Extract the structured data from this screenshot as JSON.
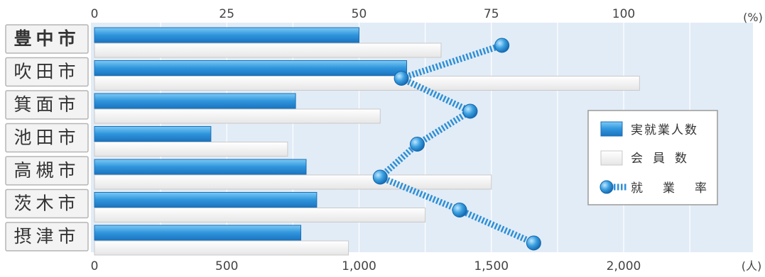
{
  "chart_data": {
    "type": "bar",
    "categories": [
      "豊中市",
      "吹田市",
      "箕面市",
      "池田市",
      "高槻市",
      "茨木市",
      "摂津市"
    ],
    "series": [
      {
        "name": "実就業人数",
        "values": [
          1000,
          1180,
          760,
          440,
          800,
          840,
          780
        ],
        "axis": "bottom"
      },
      {
        "name": "会員数",
        "values": [
          1310,
          2060,
          1080,
          730,
          1500,
          1250,
          960
        ],
        "axis": "bottom"
      },
      {
        "name": "就業率",
        "values": [
          77,
          58,
          71,
          61,
          54,
          69,
          83
        ],
        "axis": "top",
        "style": "line"
      }
    ],
    "top_axis": {
      "unit": "(%)",
      "ticks": [
        0,
        25,
        50,
        75,
        100
      ],
      "range": [
        0,
        100
      ]
    },
    "bottom_axis": {
      "unit": "(人)",
      "ticks": [
        "0",
        "500",
        "1,000",
        "1,500",
        "2,000"
      ],
      "tick_values": [
        0,
        500,
        1000,
        1500,
        2000
      ],
      "range": [
        0,
        2000
      ]
    },
    "grid": true,
    "legend_position": "right",
    "colors": {
      "employed": "#3aa0e0",
      "members": "#f7f7f7",
      "rate": "#3b9fe0",
      "plot_bg": "#e2ecf6",
      "label_box": "#f4f4f4"
    }
  }
}
